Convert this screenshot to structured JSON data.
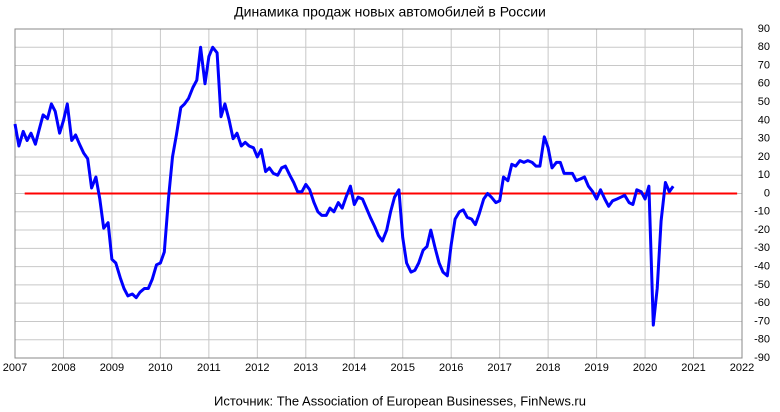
{
  "chart_data": {
    "type": "line",
    "title": "Динамика продаж новых автомобилей в России",
    "source": "Источник: The Association of European Businesses, FinNews.ru",
    "xlim": [
      2007,
      2022
    ],
    "xticks": [
      2007,
      2008,
      2009,
      2010,
      2011,
      2012,
      2013,
      2014,
      2015,
      2016,
      2017,
      2018,
      2019,
      2020,
      2021,
      2022
    ],
    "ylim": [
      -90,
      90
    ],
    "yticks": [
      -90,
      -80,
      -70,
      -60,
      -50,
      -40,
      -30,
      -20,
      -10,
      0,
      10,
      20,
      30,
      40,
      50,
      60,
      70,
      80,
      90
    ],
    "grid": true,
    "reference_line": {
      "value": 0,
      "color": "#ff0000",
      "xlim": [
        2007.2,
        2021.9
      ]
    },
    "series": [
      {
        "color": "#0000ff",
        "x": [
          2007.0,
          2007.08,
          2007.17,
          2007.25,
          2007.33,
          2007.42,
          2007.5,
          2007.58,
          2007.67,
          2007.75,
          2007.83,
          2007.92,
          2008.0,
          2008.08,
          2008.17,
          2008.25,
          2008.33,
          2008.42,
          2008.5,
          2008.58,
          2008.67,
          2008.75,
          2008.83,
          2008.92,
          2009.0,
          2009.08,
          2009.17,
          2009.25,
          2009.33,
          2009.42,
          2009.5,
          2009.58,
          2009.67,
          2009.75,
          2009.83,
          2009.92,
          2010.0,
          2010.08,
          2010.17,
          2010.25,
          2010.33,
          2010.42,
          2010.5,
          2010.58,
          2010.67,
          2010.75,
          2010.83,
          2010.92,
          2011.0,
          2011.08,
          2011.17,
          2011.25,
          2011.33,
          2011.42,
          2011.5,
          2011.58,
          2011.67,
          2011.75,
          2011.83,
          2011.92,
          2012.0,
          2012.08,
          2012.17,
          2012.25,
          2012.33,
          2012.42,
          2012.5,
          2012.58,
          2012.67,
          2012.75,
          2012.83,
          2012.92,
          2013.0,
          2013.08,
          2013.17,
          2013.25,
          2013.33,
          2013.42,
          2013.5,
          2013.58,
          2013.67,
          2013.75,
          2013.83,
          2013.92,
          2014.0,
          2014.08,
          2014.17,
          2014.25,
          2014.33,
          2014.42,
          2014.5,
          2014.58,
          2014.67,
          2014.75,
          2014.83,
          2014.92,
          2015.0,
          2015.08,
          2015.17,
          2015.25,
          2015.33,
          2015.42,
          2015.5,
          2015.58,
          2015.67,
          2015.75,
          2015.83,
          2015.92,
          2016.0,
          2016.08,
          2016.17,
          2016.25,
          2016.33,
          2016.42,
          2016.5,
          2016.58,
          2016.67,
          2016.75,
          2016.83,
          2016.92,
          2017.0,
          2017.08,
          2017.17,
          2017.25,
          2017.33,
          2017.42,
          2017.5,
          2017.58,
          2017.67,
          2017.75,
          2017.83,
          2017.92,
          2018.0,
          2018.08,
          2018.17,
          2018.25,
          2018.33,
          2018.42,
          2018.5,
          2018.58,
          2018.67,
          2018.75,
          2018.83,
          2018.92,
          2019.0,
          2019.08,
          2019.17,
          2019.25,
          2019.33,
          2019.42,
          2019.5,
          2019.58,
          2019.67,
          2019.75,
          2019.83,
          2019.92,
          2020.0,
          2020.08,
          2020.17,
          2020.25,
          2020.33,
          2020.42,
          2020.5,
          2020.58
        ],
        "values": [
          38,
          26,
          34,
          29,
          33,
          27,
          35,
          43,
          41,
          49,
          45,
          33,
          40,
          49,
          29,
          32,
          27,
          22,
          19,
          3,
          9,
          -3,
          -19,
          -16,
          -36,
          -38,
          -46,
          -52,
          -56,
          -55,
          -57,
          -54,
          -52,
          -52,
          -47,
          -39,
          -38,
          -32,
          -2,
          20,
          32,
          47,
          49,
          52,
          58,
          62,
          80,
          60,
          75,
          80,
          77,
          42,
          49,
          40,
          30,
          33,
          26,
          28,
          26,
          25,
          20,
          24,
          12,
          14,
          11,
          10,
          14,
          15,
          10,
          6,
          1,
          1,
          5,
          2,
          -5,
          -10,
          -12,
          -12,
          -8,
          -10,
          -5,
          -8,
          -2,
          4,
          -6,
          -2,
          -3,
          -8,
          -13,
          -18,
          -23,
          -26,
          -20,
          -10,
          -2,
          2,
          -24,
          -38,
          -43,
          -42,
          -38,
          -31,
          -29,
          -20,
          -30,
          -38,
          -43,
          -45,
          -28,
          -14,
          -10,
          -9,
          -13,
          -14,
          -17,
          -11,
          -3,
          0,
          -2,
          -5,
          -4,
          9,
          7,
          16,
          15,
          18,
          17,
          18,
          17,
          15,
          15,
          31,
          25,
          14,
          17,
          17,
          11,
          11,
          11,
          7,
          8,
          9,
          4,
          1,
          -3,
          2,
          -3,
          -7,
          -4,
          -3,
          -2,
          -1,
          -5,
          -6,
          2,
          1,
          -3,
          4,
          -72,
          -52,
          -15,
          6,
          1,
          4
        ]
      }
    ]
  }
}
